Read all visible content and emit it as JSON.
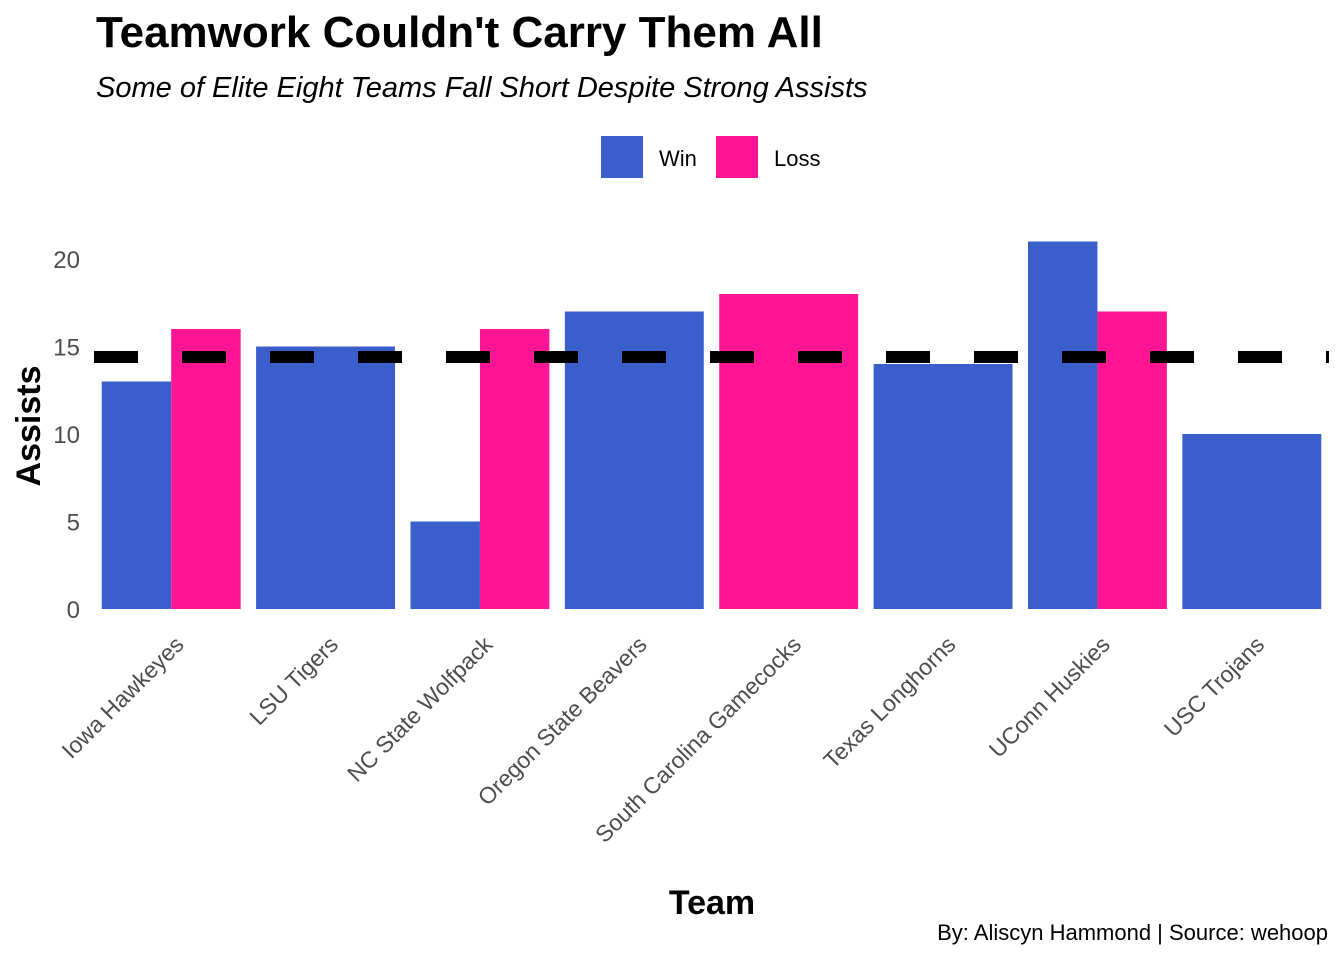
{
  "title": "Teamwork Couldn't Carry Them All",
  "subtitle": "Some of Elite Eight Teams Fall Short Despite Strong Assists",
  "caption": "By: Aliscyn Hammond | Source: wehoop",
  "chart_data": {
    "type": "bar",
    "title": "Teamwork Couldn't Carry Them All",
    "subtitle": "Some of Elite Eight Teams Fall Short Despite Strong Assists",
    "xlabel": "Team",
    "ylabel": "Assists",
    "categories": [
      "Iowa Hawkeyes",
      "LSU Tigers",
      "NC State Wolfpack",
      "Oregon State Beavers",
      "South Carolina Gamecocks",
      "Texas Longhorns",
      "UConn Huskies",
      "USC Trojans"
    ],
    "series": [
      {
        "name": "Win",
        "color": "#3A5FCD",
        "values": [
          13,
          15,
          5,
          17,
          null,
          14,
          21,
          10
        ]
      },
      {
        "name": "Loss",
        "color": "#FF1493",
        "values": [
          16,
          null,
          16,
          null,
          18,
          null,
          17,
          null
        ]
      }
    ],
    "yticks": [
      0,
      5,
      10,
      15,
      20
    ],
    "ylim": [
      0,
      21
    ],
    "reference_line": {
      "value": 14.4,
      "style": "dashed",
      "color": "#000000"
    },
    "legend": {
      "position": "top",
      "entries": [
        "Win",
        "Loss"
      ]
    },
    "grid": false
  }
}
